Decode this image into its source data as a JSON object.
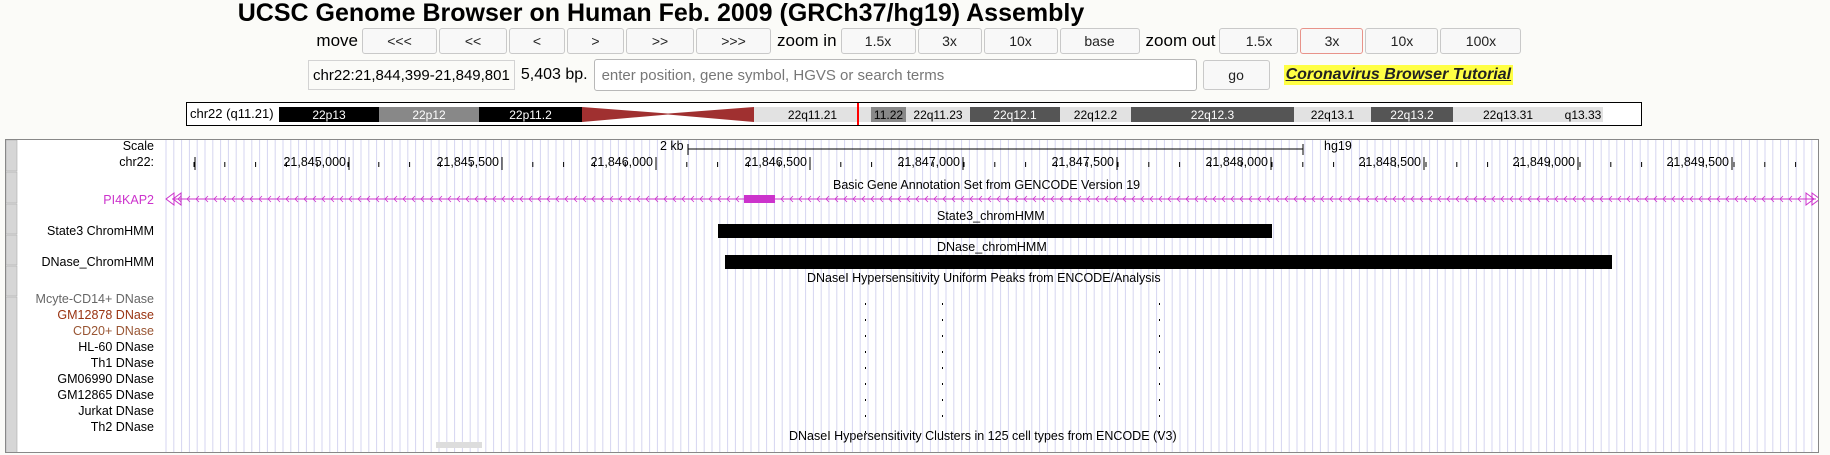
{
  "title": "UCSC Genome Browser on Human Feb. 2009 (GRCh37/hg19) Assembly",
  "nav": {
    "move_label": "move",
    "move_buttons": [
      "<<<",
      "<<",
      "<",
      ">",
      ">>",
      ">>>"
    ],
    "zoom_in_label": "zoom in",
    "zoom_in_buttons": [
      "1.5x",
      "3x",
      "10x",
      "base"
    ],
    "zoom_out_label": "zoom out",
    "zoom_out_buttons": [
      "1.5x",
      "3x",
      "10x",
      "100x"
    ]
  },
  "position": {
    "value": "chr22:21,844,399-21,849,801",
    "size": "5,403 bp.",
    "search_placeholder": "enter position, gene symbol, HGVS or search terms",
    "go_label": "go",
    "tutorial_link": "Coronavirus Browser Tutorial"
  },
  "ideogram": {
    "chrom_label": "chr22 (q11.21)",
    "bands": [
      {
        "label": "22p13",
        "color": "#000000",
        "text": "#ffffff"
      },
      {
        "label": "22p12",
        "color": "#888888",
        "text": "#ffffff"
      },
      {
        "label": "22p11.2",
        "color": "#000000",
        "text": "#ffffff"
      },
      {
        "label": "22q11.21",
        "color": "#e2e2e2",
        "text": "#000000"
      },
      {
        "label": "11.22",
        "color": "#888888",
        "text": "#000000"
      },
      {
        "label": "22q11.23",
        "color": "#e2e2e2",
        "text": "#000000"
      },
      {
        "label": "22q12.1",
        "color": "#555555",
        "text": "#ffffff"
      },
      {
        "label": "22q12.2",
        "color": "#e2e2e2",
        "text": "#000000"
      },
      {
        "label": "22q12.3",
        "color": "#555555",
        "text": "#ffffff"
      },
      {
        "label": "22q13.1",
        "color": "#e2e2e2",
        "text": "#000000"
      },
      {
        "label": "22q13.2",
        "color": "#555555",
        "text": "#ffffff"
      },
      {
        "label": "22q13.31",
        "color": "#e2e2e2",
        "text": "#000000"
      },
      {
        "label": "q13.33",
        "color": "#e2e2e2",
        "text": "#000000"
      }
    ],
    "centromere_color": "#a03030",
    "highlight_color": "#ff0000"
  },
  "tracks": {
    "scale_label": "Scale",
    "scale_text": "2 kb",
    "assembly_text": "hg19",
    "chrom_label": "chr22:",
    "ticks": [
      "21,845,000",
      "21,845,500",
      "21,846,000",
      "21,846,500",
      "21,847,000",
      "21,847,500",
      "21,848,000",
      "21,848,500",
      "21,849,000",
      "21,849,500"
    ],
    "gencode_title": "Basic Gene Annotation Set from GENCODE Version 19",
    "gene_label": "PI4KAP2",
    "gene_color": "#cc33cc",
    "state3_title": "State3_chromHMM",
    "state3_label": "State3 ChromHMM",
    "dnase_chromhmm_title": "DNase_chromHMM",
    "dnase_chromhmm_label": "DNase_ChromHMM",
    "dnase_uniform_title": "DNaseI Hypersensitivity Uniform Peaks from ENCODE/Analysis",
    "dnase_tracks": [
      {
        "label": "Mcyte-CD14+ DNase",
        "color": "#666666"
      },
      {
        "label": "GM12878 DNase",
        "color": "#993311"
      },
      {
        "label": "CD20+ DNase",
        "color": "#995533"
      },
      {
        "label": "HL-60 DNase",
        "color": "#000000"
      },
      {
        "label": "Th1 DNase",
        "color": "#000000"
      },
      {
        "label": "GM06990 DNase",
        "color": "#000000"
      },
      {
        "label": "GM12865 DNase",
        "color": "#000000"
      },
      {
        "label": "Jurkat DNase",
        "color": "#000000"
      },
      {
        "label": "Th2 DNase",
        "color": "#000000"
      }
    ],
    "clusters_title": "DNaseI Hypersensitivity Clusters in 125 cell types from ENCODE (V3)"
  }
}
